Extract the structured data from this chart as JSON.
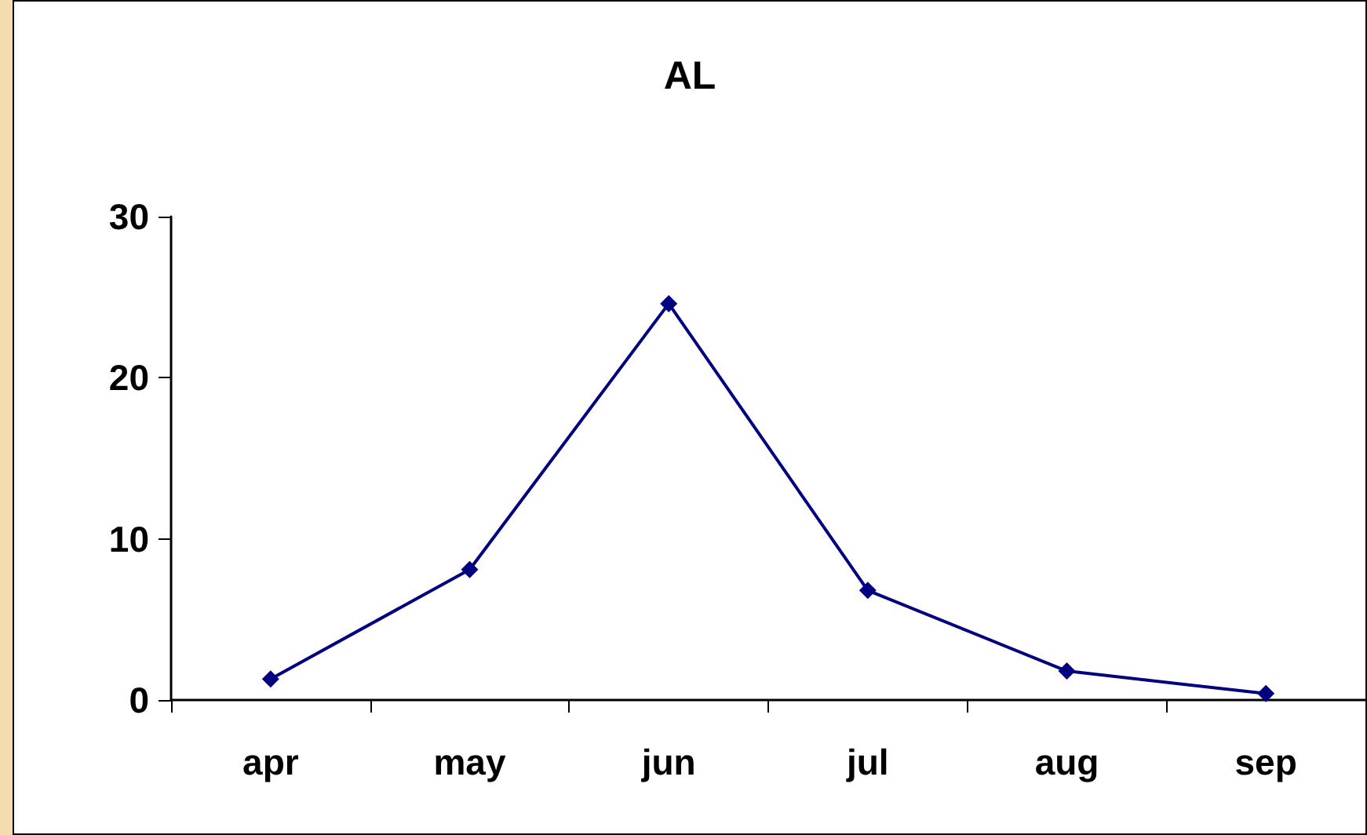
{
  "chart_data": {
    "type": "line",
    "title": "AL",
    "categories": [
      "apr",
      "may",
      "jun",
      "jul",
      "aug",
      "sep"
    ],
    "series": [
      {
        "color": "#000080",
        "values": [
          1.3,
          8.1,
          24.6,
          6.8,
          1.8,
          0.4
        ]
      }
    ],
    "ylim": [
      0,
      30
    ],
    "yticks": [
      0,
      10,
      20,
      30
    ],
    "grid": false,
    "marker": "diamond",
    "line_style": "solid"
  }
}
